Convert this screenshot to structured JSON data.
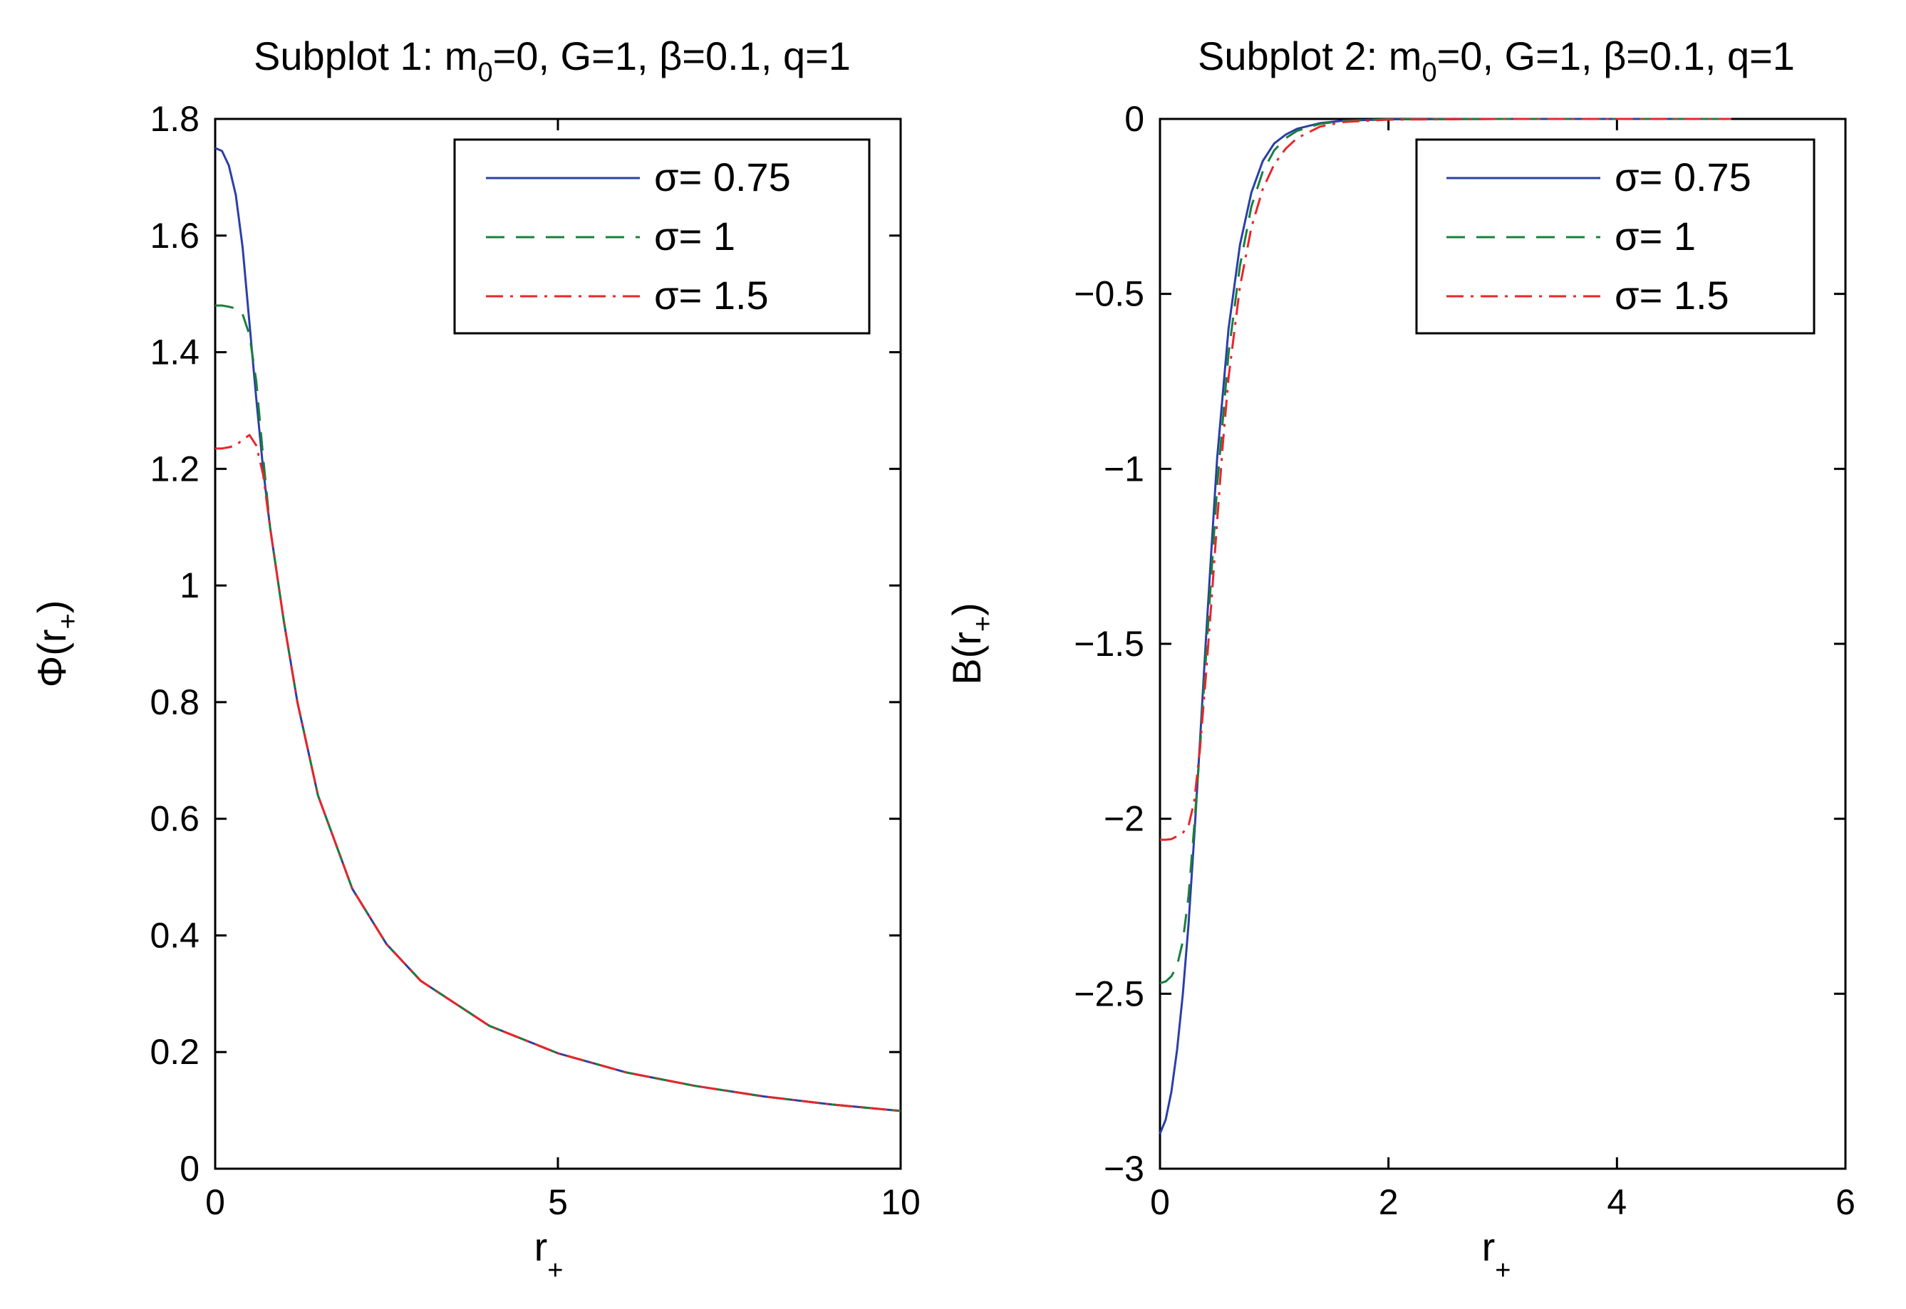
{
  "chart_data": [
    {
      "type": "line",
      "title": "Subplot 1: m0=0, G=1, β=0.1, q=1",
      "title_parts": {
        "a": "Subplot 1: m",
        "sub": "0",
        "b": "=0, G=1, β=0.1, q=1"
      },
      "xlabel": "r+",
      "xlabel_parts": {
        "main": "r",
        "sub": "+"
      },
      "ylabel": "Φ(r+)",
      "ylabel_parts": {
        "a": "Φ(r",
        "sub": "+",
        "b": ")"
      },
      "xlim": [
        0,
        10
      ],
      "ylim": [
        0,
        1.8
      ],
      "xticks": [
        0,
        5,
        10
      ],
      "xtick_labels": [
        "0",
        "5",
        "10"
      ],
      "yticks": [
        0,
        0.2,
        0.4,
        0.6,
        0.8,
        1,
        1.2,
        1.4,
        1.6,
        1.8
      ],
      "ytick_labels": [
        "0",
        "0.2",
        "0.4",
        "0.6",
        "0.8",
        "1",
        "1.2",
        "1.4",
        "1.6",
        "1.8"
      ],
      "grid": false,
      "legend_position": "top-right",
      "series": [
        {
          "name": "σ= 0.75",
          "color": "#2b3fa8",
          "style": "solid",
          "x": [
            0,
            0.1,
            0.2,
            0.3,
            0.4,
            0.5,
            0.6,
            0.7,
            0.8,
            0.9,
            1.0,
            1.2,
            1.5,
            2.0,
            2.5,
            3.0,
            4.0,
            5.0,
            6.0,
            7.0,
            8.0,
            9.0,
            10.0
          ],
          "y": [
            1.75,
            1.745,
            1.72,
            1.67,
            1.58,
            1.45,
            1.32,
            1.2,
            1.1,
            1.02,
            0.94,
            0.8,
            0.64,
            0.48,
            0.385,
            0.322,
            0.245,
            0.198,
            0.165,
            0.142,
            0.124,
            0.11,
            0.099
          ]
        },
        {
          "name": "σ= 1",
          "color": "#1a7f3c",
          "style": "dashed",
          "x": [
            0,
            0.1,
            0.2,
            0.3,
            0.4,
            0.5,
            0.6,
            0.7,
            0.8,
            0.9,
            1.0,
            1.2,
            1.5,
            2.0,
            2.5,
            3.0,
            4.0,
            5.0,
            6.0,
            7.0,
            8.0,
            9.0,
            10.0
          ],
          "y": [
            1.48,
            1.48,
            1.478,
            1.475,
            1.465,
            1.43,
            1.35,
            1.22,
            1.1,
            1.02,
            0.94,
            0.8,
            0.64,
            0.48,
            0.385,
            0.322,
            0.245,
            0.198,
            0.165,
            0.142,
            0.124,
            0.11,
            0.099
          ]
        },
        {
          "name": "σ= 1.5",
          "color": "#e8262b",
          "style": "dashdot",
          "x": [
            0,
            0.1,
            0.2,
            0.3,
            0.4,
            0.5,
            0.6,
            0.7,
            0.8,
            0.9,
            1.0,
            1.2,
            1.5,
            2.0,
            2.5,
            3.0,
            4.0,
            5.0,
            6.0,
            7.0,
            8.0,
            9.0,
            10.0
          ],
          "y": [
            1.235,
            1.235,
            1.237,
            1.24,
            1.25,
            1.258,
            1.24,
            1.19,
            1.1,
            1.02,
            0.94,
            0.8,
            0.64,
            0.48,
            0.385,
            0.322,
            0.245,
            0.198,
            0.165,
            0.142,
            0.124,
            0.11,
            0.099
          ]
        }
      ]
    },
    {
      "type": "line",
      "title": "Subplot 2: m0=0, G=1, β=0.1, q=1",
      "title_parts": {
        "a": "Subplot 2: m",
        "sub": "0",
        "b": "=0, G=1, β=0.1, q=1"
      },
      "xlabel": "r+",
      "xlabel_parts": {
        "main": "r",
        "sub": "+"
      },
      "ylabel": "B(r+)",
      "ylabel_parts": {
        "a": "B(r",
        "sub": "+",
        "b": ")"
      },
      "xlim": [
        0,
        6
      ],
      "ylim": [
        -3,
        0
      ],
      "xticks": [
        0,
        2,
        4,
        6
      ],
      "xtick_labels": [
        "0",
        "2",
        "4",
        "6"
      ],
      "yticks": [
        -3,
        -2.5,
        -2,
        -1.5,
        -1,
        -0.5,
        0
      ],
      "ytick_labels": [
        "−3",
        "−2.5",
        "−2",
        "−1.5",
        "−1",
        "−0.5",
        "0"
      ],
      "grid": false,
      "legend_position": "top-right",
      "series": [
        {
          "name": "σ= 0.75",
          "color": "#2b3fa8",
          "style": "solid",
          "x": [
            0,
            0.05,
            0.1,
            0.15,
            0.2,
            0.25,
            0.3,
            0.35,
            0.4,
            0.45,
            0.5,
            0.6,
            0.7,
            0.8,
            0.9,
            1.0,
            1.1,
            1.2,
            1.4,
            1.6,
            2.0,
            3.0,
            4.0,
            5.0
          ],
          "y": [
            -2.9,
            -2.86,
            -2.78,
            -2.66,
            -2.5,
            -2.3,
            -2.05,
            -1.78,
            -1.5,
            -1.23,
            -0.97,
            -0.6,
            -0.36,
            -0.21,
            -0.12,
            -0.07,
            -0.045,
            -0.028,
            -0.012,
            -0.005,
            -0.001,
            0,
            0,
            0
          ]
        },
        {
          "name": "σ= 1",
          "color": "#1a7f3c",
          "style": "dashed",
          "x": [
            0,
            0.05,
            0.1,
            0.15,
            0.2,
            0.25,
            0.3,
            0.35,
            0.4,
            0.45,
            0.5,
            0.6,
            0.7,
            0.8,
            0.9,
            1.0,
            1.1,
            1.2,
            1.4,
            1.6,
            2.0,
            3.0,
            4.0,
            5.0
          ],
          "y": [
            -2.47,
            -2.465,
            -2.45,
            -2.42,
            -2.35,
            -2.22,
            -2.02,
            -1.8,
            -1.55,
            -1.3,
            -1.05,
            -0.67,
            -0.42,
            -0.25,
            -0.15,
            -0.09,
            -0.055,
            -0.034,
            -0.014,
            -0.006,
            -0.001,
            0,
            0,
            0
          ]
        },
        {
          "name": "σ= 1.5",
          "color": "#e8262b",
          "style": "dashdot",
          "x": [
            0,
            0.05,
            0.1,
            0.15,
            0.2,
            0.25,
            0.3,
            0.35,
            0.4,
            0.45,
            0.5,
            0.55,
            0.6,
            0.7,
            0.8,
            0.9,
            1.0,
            1.1,
            1.2,
            1.4,
            1.6,
            2.0,
            3.0,
            4.0,
            5.0
          ],
          "y": [
            -2.06,
            -2.06,
            -2.058,
            -2.05,
            -2.04,
            -2.02,
            -1.95,
            -1.8,
            -1.6,
            -1.38,
            -1.15,
            -0.93,
            -0.74,
            -0.48,
            -0.31,
            -0.2,
            -0.13,
            -0.085,
            -0.055,
            -0.022,
            -0.009,
            -0.002,
            0,
            0,
            0
          ]
        }
      ]
    }
  ]
}
